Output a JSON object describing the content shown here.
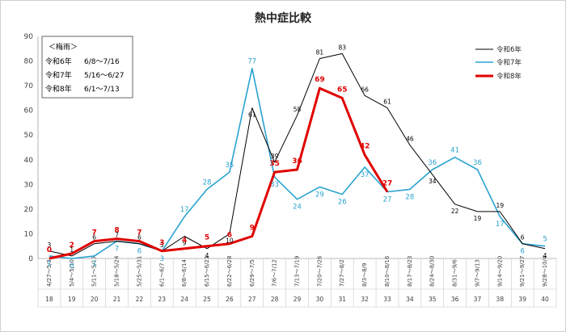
{
  "chart_data": {
    "type": "line",
    "title": "熱中症比較",
    "ylim": [
      0,
      90
    ],
    "yticks": [
      0,
      10,
      20,
      30,
      40,
      50,
      60,
      70,
      80,
      90
    ],
    "grid": false,
    "legend_position": "top-right",
    "categories": [
      "4/27～5/3",
      "5/4～5/10",
      "5/11～5/17",
      "5/18～5/24",
      "5/25～5/31",
      "6/1～6/7",
      "6/8～6/14",
      "6/15～6/21",
      "6/22～6/28",
      "6/29～7/5",
      "7/6～7/12",
      "7/13～7/19",
      "7/20～7/26",
      "7/27～8/2",
      "8/3～8/9",
      "8/10～8/16",
      "8/17～8/23",
      "8/24～8/30",
      "8/31～9/6",
      "9/7～9/13",
      "9/14～9/20",
      "9/21～9/27",
      "9/28～10/4"
    ],
    "weeks": [
      "18",
      "19",
      "20",
      "21",
      "22",
      "23",
      "24",
      "25",
      "26",
      "27",
      "28",
      "29",
      "30",
      "31",
      "32",
      "33",
      "34",
      "35",
      "36",
      "37",
      "38",
      "39",
      "40"
    ],
    "series": [
      {
        "name": "令和6年",
        "color": "#000000",
        "values": [
          3,
          1,
          6,
          7,
          6,
          3,
          9,
          4,
          10,
          61,
          39,
          58,
          81,
          83,
          66,
          61,
          46,
          34,
          22,
          19,
          19,
          6,
          4
        ]
      },
      {
        "name": "令和7年",
        "color": "#2aa3cf",
        "values": [
          1,
          0,
          1,
          7,
          6,
          3,
          17,
          28,
          35,
          77,
          33,
          24,
          29,
          26,
          37,
          27,
          28,
          36,
          41,
          36,
          17,
          6,
          5
        ]
      },
      {
        "name": "令和8年",
        "color": "#e00000",
        "values": [
          0,
          2,
          7,
          8,
          7,
          3,
          4,
          5,
          6,
          9,
          35,
          36,
          69,
          65,
          42,
          27,
          null,
          null,
          null,
          null,
          null,
          null,
          null
        ]
      }
    ],
    "rainy_season": {
      "heading": "＜梅雨＞",
      "rows": [
        {
          "year": "令和6年",
          "period": "6/8～7/16"
        },
        {
          "year": "令和7年",
          "period": "5/16～6/27"
        },
        {
          "year": "令和8年",
          "period": "6/1～7/13"
        }
      ]
    }
  }
}
